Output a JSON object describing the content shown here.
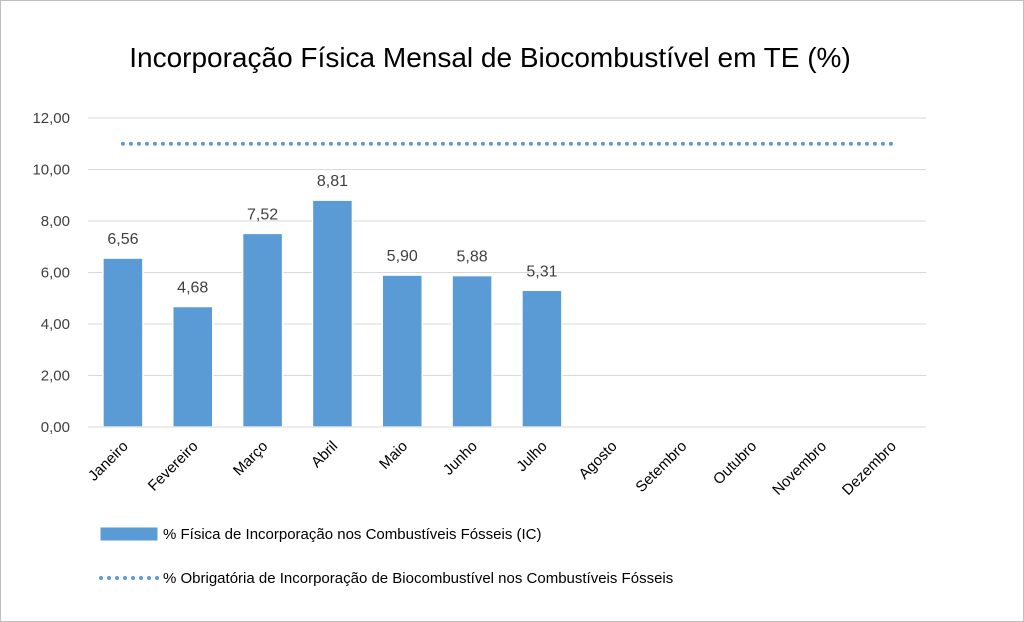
{
  "chart_data": {
    "type": "bar",
    "title": "Incorporação Física Mensal de Biocombustível em TE (%)",
    "categories": [
      "Janeiro",
      "Fevereiro",
      "Março",
      "Abril",
      "Maio",
      "Junho",
      "Julho",
      "Agosto",
      "Setembro",
      "Outubro",
      "Novembro",
      "Dezembro"
    ],
    "series": [
      {
        "name": "% Física de Incorporação nos Combustíveis Fósseis (IC)",
        "type": "bar",
        "color": "#5b9bd5",
        "values": [
          6.56,
          4.68,
          7.52,
          8.81,
          5.9,
          5.88,
          5.31,
          null,
          null,
          null,
          null,
          null
        ],
        "labels": [
          "6,56",
          "4,68",
          "7,52",
          "8,81",
          "5,90",
          "5,88",
          "5,31",
          "",
          "",
          "",
          "",
          ""
        ]
      },
      {
        "name": "% Obrigatória de Incorporação de Biocombustível nos Combustíveis Fósseis",
        "type": "line",
        "style": "dotted",
        "color": "#5b9bd5",
        "values": [
          11,
          11,
          11,
          11,
          11,
          11,
          11,
          11,
          11,
          11,
          11,
          11
        ]
      }
    ],
    "ylim": [
      0,
      12
    ],
    "yticks": [
      0,
      2,
      4,
      6,
      8,
      10,
      12
    ],
    "ytick_labels": [
      "0,00",
      "2,00",
      "4,00",
      "6,00",
      "8,00",
      "10,00",
      "12,00"
    ],
    "grid": true,
    "legend_position": "bottom"
  }
}
